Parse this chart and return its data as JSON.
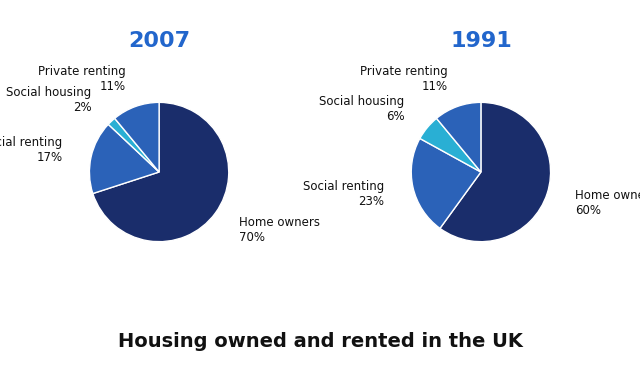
{
  "title": "Housing owned and rented in the UK",
  "title_fontsize": 14,
  "title_color": "#111111",
  "background_color": "#ffffff",
  "chart_2007": {
    "year": "2007",
    "labels": [
      "Home owners",
      "Social renting",
      "Social housing",
      "Private renting"
    ],
    "values": [
      70,
      17,
      2,
      11
    ],
    "colors": [
      "#1a2d6b",
      "#2b62b8",
      "#29afd4",
      "#2b62b8"
    ],
    "startangle": 90,
    "counterclock": false
  },
  "chart_1991": {
    "year": "1991",
    "labels": [
      "Home owners",
      "Social renting",
      "Social housing",
      "Private renting"
    ],
    "values": [
      60,
      23,
      6,
      11
    ],
    "colors": [
      "#1a2d6b",
      "#2b62b8",
      "#29afd4",
      "#2b62b8"
    ],
    "startangle": 90,
    "counterclock": false
  },
  "year_color": "#2266cc",
  "year_fontsize": 16,
  "label_fontsize": 8.5,
  "wedge_edgecolor": "#ffffff",
  "wedge_linewidth": 1.0,
  "label_color": "#111111",
  "label_r": 1.42
}
